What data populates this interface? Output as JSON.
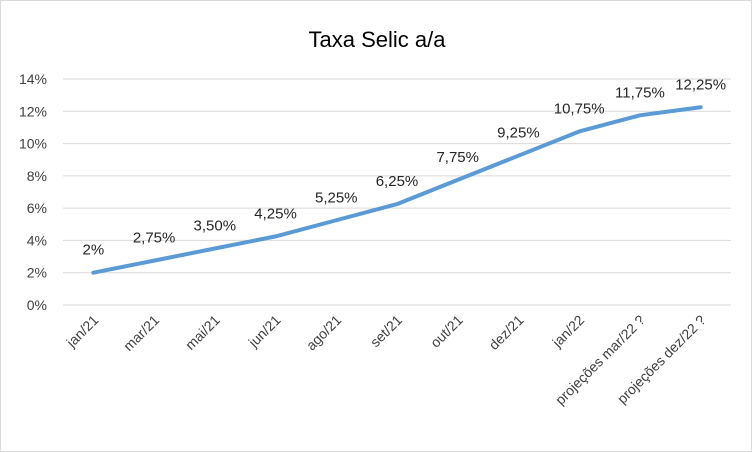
{
  "chart_data": {
    "type": "line",
    "title": "Taxa Selic a/a",
    "xlabel": "",
    "ylabel": "",
    "categories": [
      "jan/21",
      "mar/21",
      "mai/21",
      "jun/21",
      "ago/21",
      "set/21",
      "out/21",
      "dez/21",
      "jan/22",
      "projeções mar/22 ?",
      "projeções dez/22 ?"
    ],
    "series": [
      {
        "values": [
          2,
          2.75,
          3.5,
          4.25,
          5.25,
          6.25,
          7.75,
          9.25,
          10.75,
          11.75,
          12.25
        ],
        "labels": [
          "2%",
          "2,75%",
          "3,50%",
          "4,25%",
          "5,25%",
          "6,25%",
          "7,75%",
          "9,25%",
          "10,75%",
          "11,75%",
          "12,25%"
        ]
      }
    ],
    "ylim": [
      0,
      14
    ],
    "yticks": [
      "0%",
      "2%",
      "4%",
      "6%",
      "8%",
      "10%",
      "12%",
      "14%"
    ],
    "grid": true,
    "legend": "none",
    "line_color": "#5b9bd5",
    "grid_color": "#d9d9d9"
  }
}
